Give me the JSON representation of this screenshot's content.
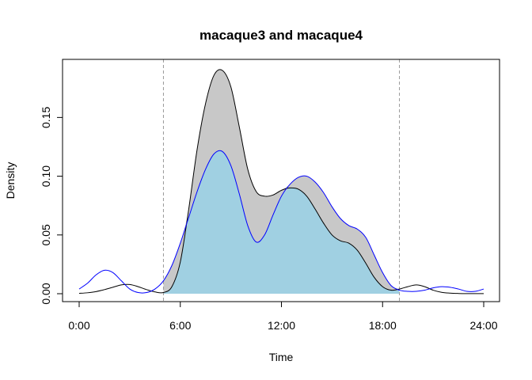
{
  "chart_data": {
    "type": "area",
    "title": "macaque3 and macaque4",
    "xlabel": "Time",
    "ylabel": "Density",
    "xlim": [
      0,
      24
    ],
    "ylim": [
      0,
      0.19
    ],
    "xticks": [
      {
        "value": 0,
        "label": "0:00"
      },
      {
        "value": 6,
        "label": "6:00"
      },
      {
        "value": 12,
        "label": "12:00"
      },
      {
        "value": 18,
        "label": "18:00"
      },
      {
        "value": 24,
        "label": "24:00"
      }
    ],
    "yticks": [
      {
        "value": 0.0,
        "label": "0.00"
      },
      {
        "value": 0.05,
        "label": "0.05"
      },
      {
        "value": 0.1,
        "label": "0.10"
      },
      {
        "value": 0.15,
        "label": "0.15"
      }
    ],
    "reference_lines_x": [
      5,
      19
    ],
    "overlap_fill_color": "#a0d0e2",
    "difference_fill_color": "#c8c8c8",
    "series": [
      {
        "color": "#000000",
        "x": [
          0,
          0.5,
          1,
          1.5,
          2,
          2.5,
          3,
          3.5,
          4,
          4.5,
          5,
          5.5,
          6,
          6.5,
          7,
          7.5,
          8,
          8.5,
          9,
          9.5,
          10,
          10.5,
          11,
          11.5,
          12,
          12.5,
          13,
          13.5,
          14,
          14.5,
          15,
          15.5,
          16,
          16.5,
          17,
          17.5,
          18,
          18.5,
          19,
          19.5,
          20,
          20.5,
          21,
          21.5,
          22,
          22.5,
          23,
          23.5,
          24
        ],
        "y": [
          0.0003,
          0.0008,
          0.0018,
          0.0035,
          0.0055,
          0.0075,
          0.0078,
          0.006,
          0.0035,
          0.0015,
          0.001,
          0.006,
          0.027,
          0.072,
          0.123,
          0.162,
          0.186,
          0.19,
          0.176,
          0.142,
          0.106,
          0.087,
          0.083,
          0.084,
          0.088,
          0.09,
          0.089,
          0.083,
          0.072,
          0.06,
          0.05,
          0.045,
          0.043,
          0.037,
          0.026,
          0.014,
          0.006,
          0.003,
          0.004,
          0.006,
          0.0075,
          0.006,
          0.003,
          0.0012,
          0.0005,
          0.0002,
          0.0001,
          0.0001,
          0.0001
        ]
      },
      {
        "color": "#0000ff",
        "x": [
          0,
          0.5,
          1,
          1.5,
          2,
          2.5,
          3,
          3.5,
          4,
          4.5,
          5,
          5.5,
          6,
          6.5,
          7,
          7.5,
          8,
          8.5,
          9,
          9.5,
          10,
          10.5,
          11,
          11.5,
          12,
          12.5,
          13,
          13.5,
          14,
          14.5,
          15,
          15.5,
          16,
          16.5,
          17,
          17.5,
          18,
          18.5,
          19,
          19.5,
          20,
          20.5,
          21,
          21.5,
          22,
          22.5,
          23,
          23.5,
          24
        ],
        "y": [
          0.004,
          0.009,
          0.016,
          0.02,
          0.018,
          0.011,
          0.004,
          0.001,
          0.001,
          0.004,
          0.011,
          0.024,
          0.043,
          0.065,
          0.087,
          0.106,
          0.119,
          0.121,
          0.109,
          0.085,
          0.058,
          0.044,
          0.05,
          0.067,
          0.083,
          0.093,
          0.099,
          0.1,
          0.095,
          0.086,
          0.074,
          0.064,
          0.058,
          0.055,
          0.048,
          0.033,
          0.018,
          0.007,
          0.003,
          0.002,
          0.002,
          0.003,
          0.005,
          0.006,
          0.0055,
          0.004,
          0.002,
          0.002,
          0.004
        ]
      }
    ]
  }
}
